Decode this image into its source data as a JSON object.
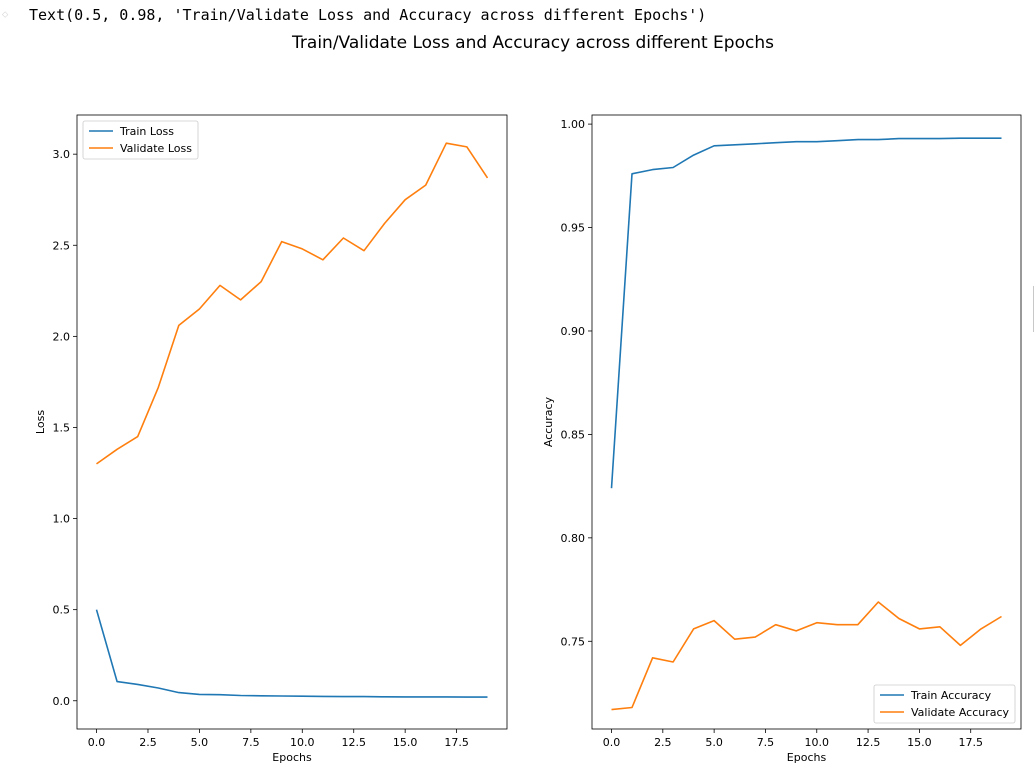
{
  "output": {
    "prompt_icon": "output-arrow-icon",
    "text": "Text(0.5, 0.98, 'Train/Validate Loss and Accuracy across different Epochs')"
  },
  "suptitle": "Train/Validate Loss and Accuracy across different Epochs",
  "chart_data": [
    {
      "type": "line",
      "title": "",
      "xlabel": "Epochs",
      "ylabel": "Loss",
      "xlim": [
        -0.95,
        19.95
      ],
      "ylim": [
        -0.155,
        3.215
      ],
      "xticks": [
        0,
        2.5,
        5,
        7.5,
        10,
        12.5,
        15,
        17.5
      ],
      "xtick_labels": [
        "0.0",
        "2.5",
        "5.0",
        "7.5",
        "10.0",
        "12.5",
        "15.0",
        "17.5"
      ],
      "yticks": [
        0,
        0.5,
        1,
        1.5,
        2,
        2.5,
        3
      ],
      "ytick_labels": [
        "0.0",
        "0.5",
        "1.0",
        "1.5",
        "2.0",
        "2.5",
        "3.0"
      ],
      "legend_position": "upper-left",
      "x": [
        0,
        1,
        2,
        3,
        4,
        5,
        6,
        7,
        8,
        9,
        10,
        11,
        12,
        13,
        14,
        15,
        16,
        17,
        18,
        19
      ],
      "series": [
        {
          "name": "Train Loss",
          "color": "#1f77b4",
          "values": [
            0.5,
            0.105,
            0.09,
            0.07,
            0.045,
            0.035,
            0.033,
            0.029,
            0.027,
            0.026,
            0.025,
            0.024,
            0.023,
            0.023,
            0.022,
            0.021,
            0.021,
            0.021,
            0.02,
            0.02
          ]
        },
        {
          "name": "Validate Loss",
          "color": "#ff7f0e",
          "values": [
            1.3,
            1.38,
            1.45,
            1.72,
            2.06,
            2.15,
            2.28,
            2.2,
            2.3,
            2.52,
            2.48,
            2.42,
            2.54,
            2.47,
            2.62,
            2.75,
            2.83,
            3.06,
            3.04,
            2.87
          ]
        }
      ]
    },
    {
      "type": "line",
      "title": "",
      "xlabel": "Epochs",
      "ylabel": "Accuracy",
      "xlim": [
        -0.95,
        19.95
      ],
      "ylim": [
        0.7076,
        1.0044
      ],
      "xticks": [
        0,
        2.5,
        5,
        7.5,
        10,
        12.5,
        15,
        17.5
      ],
      "xtick_labels": [
        "0.0",
        "2.5",
        "5.0",
        "7.5",
        "10.0",
        "12.5",
        "15.0",
        "17.5"
      ],
      "yticks": [
        0.75,
        0.8,
        0.85,
        0.9,
        0.95,
        1.0
      ],
      "ytick_labels": [
        "0.75",
        "0.80",
        "0.85",
        "0.90",
        "0.95",
        "1.00"
      ],
      "legend_position": "lower-right",
      "x": [
        0,
        1,
        2,
        3,
        4,
        5,
        6,
        7,
        8,
        9,
        10,
        11,
        12,
        13,
        14,
        15,
        16,
        17,
        18,
        19
      ],
      "series": [
        {
          "name": "Train Accuracy",
          "color": "#1f77b4",
          "values": [
            0.824,
            0.976,
            0.978,
            0.979,
            0.985,
            0.9895,
            0.99,
            0.9905,
            0.991,
            0.9915,
            0.9915,
            0.992,
            0.9925,
            0.9925,
            0.993,
            0.993,
            0.993,
            0.9932,
            0.9932,
            0.9932
          ]
        },
        {
          "name": "Validate Accuracy",
          "color": "#ff7f0e",
          "values": [
            0.717,
            0.718,
            0.742,
            0.74,
            0.756,
            0.76,
            0.751,
            0.752,
            0.758,
            0.755,
            0.759,
            0.758,
            0.758,
            0.769,
            0.761,
            0.756,
            0.757,
            0.748,
            0.756,
            0.762
          ]
        }
      ]
    }
  ]
}
